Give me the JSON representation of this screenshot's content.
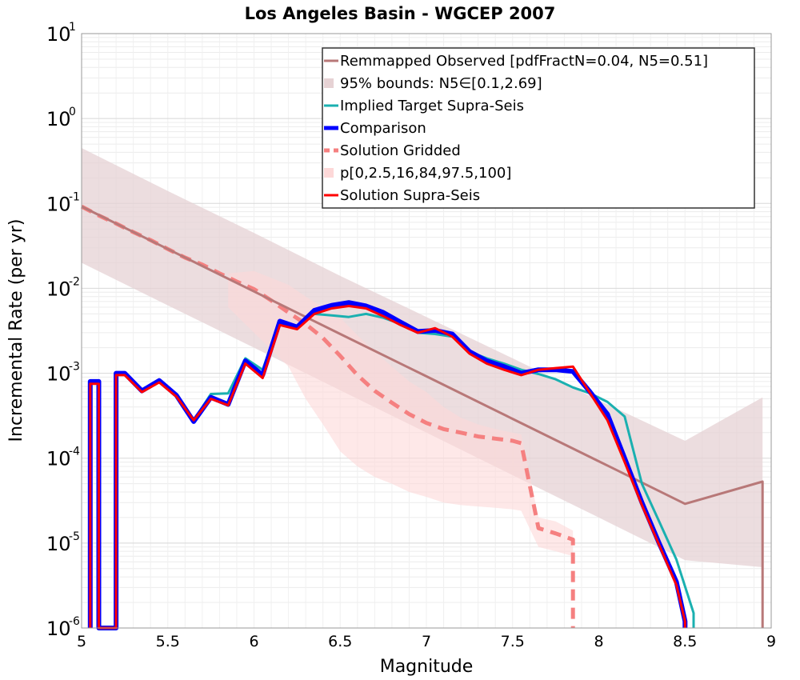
{
  "chart_data": {
    "type": "line",
    "title": "Los Angeles Basin - WGCEP 2007",
    "xlabel": "Magnitude",
    "ylabel": "Incremental Rate (per yr)",
    "xlim": [
      5,
      9
    ],
    "ylim": [
      1e-06,
      10
    ],
    "y_scale": "log",
    "grid": true,
    "legend_position": "top-right",
    "x_ticks": [
      {
        "value": 5,
        "label": "5"
      },
      {
        "value": 5.5,
        "label": "5.5"
      },
      {
        "value": 6,
        "label": "6"
      },
      {
        "value": 6.5,
        "label": "6.5"
      },
      {
        "value": 7,
        "label": "7"
      },
      {
        "value": 7.5,
        "label": "7.5"
      },
      {
        "value": 8,
        "label": "8"
      },
      {
        "value": 8.5,
        "label": "8.5"
      },
      {
        "value": 9,
        "label": "9"
      }
    ],
    "y_ticks": [
      {
        "value": 1e-06,
        "base": "10",
        "exp": "-6"
      },
      {
        "value": 1e-05,
        "base": "10",
        "exp": "-5"
      },
      {
        "value": 0.0001,
        "base": "10",
        "exp": "-4"
      },
      {
        "value": 0.001,
        "base": "10",
        "exp": "-3"
      },
      {
        "value": 0.01,
        "base": "10",
        "exp": "-2"
      },
      {
        "value": 0.1,
        "base": "10",
        "exp": "-1"
      },
      {
        "value": 1,
        "base": "10",
        "exp": "0"
      },
      {
        "value": 10,
        "base": "10",
        "exp": "1"
      }
    ],
    "bands": [
      {
        "name": "95% bounds: N5∈[0.1,2.69]",
        "color": "#e6d2d4",
        "x": [
          5,
          5.5,
          6,
          6.5,
          7,
          7.5,
          8,
          8.5,
          8.95
        ],
        "upper": [
          0.45,
          0.14,
          0.045,
          0.014,
          0.0046,
          0.0015,
          0.00048,
          0.00016,
          0.00052
        ],
        "lower": [
          0.02,
          0.0063,
          0.002,
          0.00063,
          0.0002,
          6.3e-05,
          2e-05,
          6.3e-06,
          5.2e-06
        ]
      },
      {
        "name": "p[0,2.5,16,84,97.5,100]",
        "color": "#fdd8d8",
        "x": [
          5.85,
          6,
          6.2,
          6.3,
          6.4,
          6.5,
          6.6,
          6.7,
          6.8,
          6.9,
          7,
          7.1,
          7.2,
          7.3,
          7.4,
          7.5,
          7.55,
          7.65,
          7.75,
          7.85
        ],
        "upper": [
          0.015,
          0.016,
          0.011,
          0.008,
          0.006,
          0.0045,
          0.0028,
          0.0018,
          0.0012,
          0.0008,
          0.0006,
          0.0004,
          0.0003,
          0.00025,
          0.00022,
          0.0002,
          0.00019,
          2e-05,
          1.8e-05,
          1.4e-05
        ],
        "lower": [
          0.006,
          0.003,
          0.0012,
          0.0005,
          0.00025,
          0.00012,
          8e-05,
          6e-05,
          5e-05,
          4e-05,
          3.5e-05,
          3e-05,
          2.8e-05,
          2.7e-05,
          2.6e-05,
          2.5e-05,
          2.4e-05,
          9e-06,
          8e-06,
          7e-06
        ]
      }
    ],
    "series": [
      {
        "name": "Remmapped Observed [pdfFractN=0.04, N5=0.51]",
        "color": "#b87878",
        "width": 3,
        "x": [
          5,
          5.5,
          6,
          6.5,
          7,
          7.5,
          8,
          8.5,
          8.95,
          8.95
        ],
        "values": [
          0.092,
          0.029,
          0.0092,
          0.0029,
          0.00092,
          0.00029,
          9.2e-05,
          2.9e-05,
          5.3e-05,
          1e-06
        ]
      },
      {
        "name": "Implied Target Supra-Seis",
        "color": "#1ab0b0",
        "width": 3,
        "x": [
          5.05,
          5.05,
          5.1,
          5.1,
          5.2,
          5.2,
          5.25,
          5.35,
          5.45,
          5.55,
          5.65,
          5.75,
          5.85,
          5.95,
          6.05,
          6.15,
          6.25,
          6.35,
          6.45,
          6.55,
          6.65,
          6.75,
          6.85,
          6.95,
          7.05,
          7.15,
          7.25,
          7.35,
          7.45,
          7.55,
          7.65,
          7.75,
          7.85,
          7.95,
          8.05,
          8.15,
          8.25,
          8.35,
          8.45,
          8.55,
          8.55
        ],
        "values": [
          1e-06,
          0.0008,
          0.0008,
          1e-06,
          1e-06,
          0.001,
          0.001,
          0.00062,
          0.00082,
          0.00055,
          0.00028,
          0.00057,
          0.00058,
          0.0015,
          0.0011,
          0.0042,
          0.0036,
          0.005,
          0.0048,
          0.0046,
          0.005,
          0.0045,
          0.0038,
          0.003,
          0.0029,
          0.0027,
          0.0018,
          0.0015,
          0.0013,
          0.0011,
          0.00098,
          0.00085,
          0.00068,
          0.00058,
          0.00046,
          0.00031,
          5e-05,
          1.8e-05,
          6.4e-06,
          1.5e-06,
          1e-06
        ]
      },
      {
        "name": "Comparison",
        "color": "#0000ff",
        "width": 6,
        "x": [
          5.05,
          5.05,
          5.1,
          5.1,
          5.2,
          5.2,
          5.25,
          5.35,
          5.45,
          5.55,
          5.65,
          5.75,
          5.85,
          5.95,
          6.05,
          6.15,
          6.25,
          6.35,
          6.45,
          6.55,
          6.65,
          6.75,
          6.85,
          6.95,
          7.05,
          7.15,
          7.25,
          7.35,
          7.45,
          7.55,
          7.65,
          7.75,
          7.85,
          7.95,
          8.05,
          8.15,
          8.25,
          8.35,
          8.45,
          8.5,
          8.5
        ],
        "values": [
          1e-06,
          0.0008,
          0.0008,
          1e-06,
          1e-06,
          0.001,
          0.001,
          0.00062,
          0.00082,
          0.00055,
          0.00027,
          0.00052,
          0.00043,
          0.0014,
          0.00095,
          0.0041,
          0.0035,
          0.0055,
          0.0063,
          0.0068,
          0.0062,
          0.0052,
          0.004,
          0.0031,
          0.0032,
          0.0029,
          0.0018,
          0.0014,
          0.0012,
          0.001,
          0.0011,
          0.0011,
          0.00105,
          0.0006,
          0.00033,
          0.0001,
          3e-05,
          1e-05,
          3.5e-06,
          1.2e-06,
          1e-06
        ]
      },
      {
        "name": "Solution Gridded",
        "color": "#f58080",
        "width": 5,
        "dashed": true,
        "x": [
          5,
          5.1,
          5.2,
          5.3,
          5.4,
          5.5,
          5.6,
          5.7,
          5.8,
          5.9,
          6,
          6.1,
          6.2,
          6.3,
          6.4,
          6.5,
          6.6,
          6.7,
          6.8,
          6.9,
          7,
          7.1,
          7.2,
          7.3,
          7.4,
          7.5,
          7.55,
          7.65,
          7.75,
          7.85,
          7.85
        ],
        "values": [
          0.092,
          0.072,
          0.058,
          0.046,
          0.037,
          0.029,
          0.023,
          0.019,
          0.015,
          0.012,
          0.0098,
          0.0072,
          0.0052,
          0.0038,
          0.0026,
          0.0016,
          0.00095,
          0.00062,
          0.00045,
          0.00033,
          0.00026,
          0.00022,
          0.0002,
          0.00018,
          0.00017,
          0.00016,
          0.00015,
          1.5e-05,
          1.3e-05,
          1.1e-05,
          1e-06
        ]
      },
      {
        "name": "Solution Supra-Seis",
        "color": "#ff0000",
        "width": 3,
        "x": [
          5.05,
          5.05,
          5.1,
          5.1,
          5.2,
          5.2,
          5.25,
          5.35,
          5.45,
          5.55,
          5.65,
          5.75,
          5.85,
          5.95,
          6.05,
          6.15,
          6.25,
          6.35,
          6.45,
          6.55,
          6.65,
          6.75,
          6.85,
          6.95,
          7.05,
          7.15,
          7.25,
          7.35,
          7.45,
          7.55,
          7.65,
          7.75,
          7.85,
          7.95,
          8.05,
          8.15,
          8.25,
          8.35,
          8.45,
          8.5,
          8.5
        ],
        "values": [
          1e-06,
          0.00075,
          0.00075,
          1e-06,
          1e-06,
          0.00095,
          0.00095,
          0.0006,
          0.00078,
          0.00053,
          0.00028,
          0.0005,
          0.00042,
          0.0013,
          0.00088,
          0.0037,
          0.0033,
          0.005,
          0.0058,
          0.0062,
          0.0058,
          0.0047,
          0.0037,
          0.003,
          0.0034,
          0.0027,
          0.0017,
          0.0013,
          0.0011,
          0.00095,
          0.0011,
          0.00115,
          0.0012,
          0.00058,
          0.00028,
          9e-05,
          2.8e-05,
          9.5e-06,
          3.2e-06,
          1.2e-06,
          1e-06
        ]
      }
    ],
    "legend": [
      {
        "label": "Remmapped Observed [pdfFractN=0.04, N5=0.51]",
        "color": "#b87878",
        "style": "line"
      },
      {
        "label": "95% bounds: N5∈[0.1,2.69]",
        "color": "#e6d2d4",
        "style": "box"
      },
      {
        "label": "Implied Target Supra-Seis",
        "color": "#1ab0b0",
        "style": "line"
      },
      {
        "label": "Comparison",
        "color": "#0000ff",
        "style": "thick"
      },
      {
        "label": "Solution Gridded",
        "color": "#f58080",
        "style": "dashed"
      },
      {
        "label": "p[0,2.5,16,84,97.5,100]",
        "color": "#fdd8d8",
        "style": "box"
      },
      {
        "label": "Solution Supra-Seis",
        "color": "#ff0000",
        "style": "line"
      }
    ]
  }
}
